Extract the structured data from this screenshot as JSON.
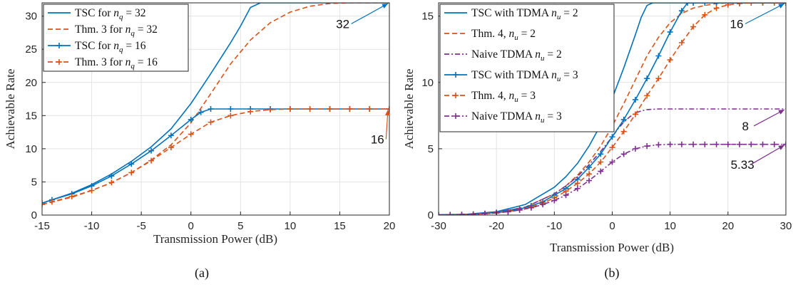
{
  "captions": [
    "(a)",
    "(b)"
  ],
  "colors": {
    "blue": "#0072BD",
    "orange": "#D95319",
    "purple": "#7E2F8E"
  },
  "chart_data": [
    {
      "type": "line",
      "caption": "(a)",
      "xlabel": "Transmission Power (dB)",
      "ylabel": "Achievable Rate",
      "xlim": [
        -15,
        20
      ],
      "ylim": [
        0,
        32
      ],
      "xticks": [
        "-15",
        "-10",
        "-5",
        "0",
        "5",
        "10",
        "15",
        "20"
      ],
      "yticks": [
        "0",
        "5",
        "10",
        "15",
        "20",
        "25",
        "30"
      ],
      "grid": true,
      "legend_position": "top-left",
      "series": [
        {
          "name": "TSC for n_q = 32",
          "legend": {
            "pre": "TSC for ",
            "var": "n",
            "sub": "q",
            "post": " = 32"
          },
          "color": "#0072BD",
          "dash": "solid",
          "marker": "none",
          "x": [
            -15,
            -12,
            -10,
            -8,
            -6,
            -4,
            -2,
            0,
            2,
            4,
            5,
            6,
            7,
            8,
            10,
            12,
            14,
            16,
            18,
            20
          ],
          "y": [
            1.8,
            3.3,
            4.6,
            6.2,
            8.1,
            10.3,
            13.0,
            16.8,
            21.3,
            26.0,
            28.5,
            31.3,
            32.0,
            32.0,
            32.0,
            32.0,
            32.0,
            32.0,
            32.0,
            32.0
          ]
        },
        {
          "name": "Thm. 3 for n_q = 32",
          "legend": {
            "pre": "Thm. 3 for ",
            "var": "n",
            "sub": "q",
            "post": " = 32"
          },
          "color": "#D95319",
          "dash": "dashed",
          "marker": "none",
          "x": [
            -15,
            -12,
            -10,
            -8,
            -6,
            -4,
            -2,
            0,
            2,
            4,
            6,
            8,
            10,
            12,
            14,
            16,
            18,
            20
          ],
          "y": [
            1.6,
            2.7,
            3.7,
            4.9,
            6.4,
            8.3,
            10.6,
            13.9,
            18.3,
            22.8,
            26.4,
            29.0,
            30.6,
            31.5,
            31.9,
            32.0,
            32.0,
            32.0
          ]
        },
        {
          "name": "TSC for n_q = 16",
          "legend": {
            "pre": "TSC for ",
            "var": "n",
            "sub": "q",
            "post": " = 16"
          },
          "color": "#0072BD",
          "dash": "solid",
          "marker": "plus",
          "x": [
            -15,
            -14,
            -12,
            -10,
            -8,
            -6,
            -4,
            -2,
            0,
            1,
            2,
            4,
            6,
            8,
            10,
            12,
            14,
            16,
            18,
            20
          ],
          "y": [
            1.8,
            2.3,
            3.2,
            4.4,
            5.9,
            7.7,
            9.7,
            12.0,
            14.4,
            15.5,
            16.0,
            16.0,
            16.0,
            16.0,
            16.0,
            16.0,
            16.0,
            16.0,
            16.0,
            16.0
          ]
        },
        {
          "name": "Thm. 3 for n_q = 16",
          "legend": {
            "pre": "Thm. 3 for ",
            "var": "n",
            "sub": "q",
            "post": " = 16"
          },
          "color": "#D95319",
          "dash": "dashed",
          "marker": "plus",
          "x": [
            -15,
            -14,
            -12,
            -10,
            -8,
            -6,
            -4,
            -2,
            0,
            2,
            4,
            6,
            8,
            10,
            12,
            14,
            16,
            18,
            20
          ],
          "y": [
            1.6,
            2.0,
            2.8,
            3.7,
            4.9,
            6.4,
            8.2,
            10.2,
            12.2,
            14.0,
            15.0,
            15.6,
            15.9,
            16.0,
            16.0,
            16.0,
            16.0,
            16.0,
            16.0
          ]
        }
      ],
      "annotations": [
        {
          "text": "32",
          "tx": 15.3,
          "ty": 28.2,
          "ax": 20,
          "ay": 32,
          "color": "#0072BD"
        },
        {
          "text": "16",
          "tx": 18.8,
          "ty": 10.8,
          "ax": 20,
          "ay": 16,
          "color": "#D95319"
        }
      ]
    },
    {
      "type": "line",
      "caption": "(b)",
      "xlabel": "Transmission Power (dB)",
      "ylabel": "Achievable Rate",
      "xlim": [
        -30,
        30
      ],
      "ylim": [
        0,
        16
      ],
      "xticks": [
        "-30",
        "-20",
        "-10",
        "0",
        "10",
        "20",
        "30"
      ],
      "yticks": [
        "0",
        "5",
        "10",
        "15"
      ],
      "grid": true,
      "legend_position": "top-left",
      "series": [
        {
          "name": "TSC with TDMA n_u = 2",
          "legend": {
            "pre": "TSC with TDMA ",
            "var": "n",
            "sub": "u",
            "post": " = 2"
          },
          "color": "#0072BD",
          "dash": "solid",
          "marker": "none",
          "x": [
            -30,
            -25,
            -20,
            -15,
            -10,
            -8,
            -6,
            -4,
            -2,
            0,
            2,
            4,
            5,
            6,
            7,
            10,
            15,
            20,
            25,
            30
          ],
          "y": [
            0.02,
            0.07,
            0.25,
            0.8,
            2.1,
            2.9,
            3.9,
            5.2,
            6.8,
            8.8,
            11.1,
            13.6,
            14.9,
            15.8,
            16.0,
            16.0,
            16.0,
            16.0,
            16.0,
            16.0
          ]
        },
        {
          "name": "Thm. 4, n_u = 2",
          "legend": {
            "pre": "Thm. 4, ",
            "var": "n",
            "sub": "u",
            "post": " = 2"
          },
          "color": "#D95319",
          "dash": "dashed",
          "marker": "none",
          "x": [
            -30,
            -25,
            -20,
            -15,
            -10,
            -8,
            -6,
            -4,
            -2,
            0,
            2,
            4,
            6,
            8,
            10,
            12,
            14,
            16,
            18,
            20,
            25,
            30
          ],
          "y": [
            0.01,
            0.05,
            0.2,
            0.6,
            1.6,
            2.2,
            3.0,
            4.0,
            5.2,
            6.7,
            8.4,
            10.2,
            12.0,
            13.4,
            14.5,
            15.2,
            15.6,
            15.8,
            15.95,
            16.0,
            16.0,
            16.0
          ]
        },
        {
          "name": "Naive TDMA n_u = 2",
          "legend": {
            "pre": "Naive TDMA ",
            "var": "n",
            "sub": "u",
            "post": " = 2"
          },
          "color": "#7E2F8E",
          "dash": "dashdot",
          "marker": "none",
          "x": [
            -30,
            -25,
            -20,
            -15,
            -10,
            -8,
            -6,
            -4,
            -2,
            0,
            1,
            2,
            3,
            4,
            5,
            6,
            8,
            10,
            15,
            20,
            25,
            30
          ],
          "y": [
            0.01,
            0.05,
            0.2,
            0.6,
            1.6,
            2.2,
            2.9,
            3.8,
            4.8,
            5.9,
            6.5,
            7.0,
            7.4,
            7.7,
            7.85,
            7.95,
            8.0,
            8.0,
            8.0,
            8.0,
            8.0,
            8.0
          ]
        },
        {
          "name": "TSC with TDMA n_u = 3",
          "legend": {
            "pre": "TSC with TDMA ",
            "var": "n",
            "sub": "u",
            "post": " = 3"
          },
          "color": "#0072BD",
          "dash": "solid",
          "marker": "plus",
          "x": [
            -30,
            -28,
            -26,
            -24,
            -22,
            -20,
            -18,
            -16,
            -14,
            -12,
            -10,
            -8,
            -6,
            -4,
            -2,
            0,
            2,
            4,
            6,
            8,
            10,
            12,
            13,
            14,
            16,
            18,
            20,
            22,
            24,
            26,
            28,
            30
          ],
          "y": [
            0.01,
            0.02,
            0.04,
            0.07,
            0.12,
            0.2,
            0.3,
            0.45,
            0.7,
            1.0,
            1.5,
            2.0,
            2.7,
            3.6,
            4.6,
            5.9,
            7.2,
            8.7,
            10.3,
            12.0,
            13.8,
            15.4,
            16.0,
            16.0,
            16.0,
            16.0,
            16.0,
            16.0,
            16.0,
            16.0,
            16.0,
            16.0
          ]
        },
        {
          "name": "Thm. 4, n_u = 3",
          "legend": {
            "pre": "Thm. 4, ",
            "var": "n",
            "sub": "u",
            "post": " = 3"
          },
          "color": "#D95319",
          "dash": "dashed",
          "marker": "plus",
          "x": [
            -30,
            -28,
            -26,
            -24,
            -22,
            -20,
            -18,
            -16,
            -14,
            -12,
            -10,
            -8,
            -6,
            -4,
            -2,
            0,
            2,
            4,
            6,
            8,
            10,
            12,
            14,
            16,
            18,
            20,
            22,
            24,
            26,
            28,
            30
          ],
          "y": [
            0.01,
            0.02,
            0.03,
            0.06,
            0.1,
            0.17,
            0.26,
            0.4,
            0.6,
            0.9,
            1.3,
            1.8,
            2.4,
            3.1,
            4.0,
            5.1,
            6.3,
            7.6,
            9.0,
            10.3,
            11.7,
            13.0,
            14.2,
            15.1,
            15.6,
            15.85,
            15.95,
            16.0,
            16.0,
            16.0,
            16.0
          ]
        },
        {
          "name": "Naive TDMA n_u = 3",
          "legend": {
            "pre": "Naive TDMA ",
            "var": "n",
            "sub": "u",
            "post": " = 3"
          },
          "color": "#7E2F8E",
          "dash": "dashdot",
          "marker": "plus",
          "x": [
            -30,
            -28,
            -26,
            -24,
            -22,
            -20,
            -18,
            -16,
            -14,
            -12,
            -10,
            -8,
            -6,
            -4,
            -2,
            0,
            2,
            4,
            6,
            8,
            10,
            12,
            14,
            16,
            18,
            20,
            22,
            24,
            26,
            28,
            30
          ],
          "y": [
            0.01,
            0.02,
            0.03,
            0.06,
            0.1,
            0.16,
            0.25,
            0.38,
            0.55,
            0.8,
            1.1,
            1.5,
            2.0,
            2.6,
            3.3,
            4.0,
            4.6,
            5.0,
            5.2,
            5.3,
            5.33,
            5.33,
            5.33,
            5.33,
            5.33,
            5.33,
            5.33,
            5.33,
            5.33,
            5.33,
            5.33
          ]
        }
      ],
      "annotations": [
        {
          "text": "16",
          "tx": 21.5,
          "ty": 14.1,
          "ax": 30,
          "ay": 16,
          "color": "#0072BD"
        },
        {
          "text": "8",
          "tx": 23.0,
          "ty": 6.4,
          "ax": 30,
          "ay": 8,
          "color": "#7E2F8E"
        },
        {
          "text": "5.33",
          "tx": 22.5,
          "ty": 3.5,
          "ax": 30,
          "ay": 5.33,
          "color": "#7E2F8E"
        }
      ]
    }
  ]
}
